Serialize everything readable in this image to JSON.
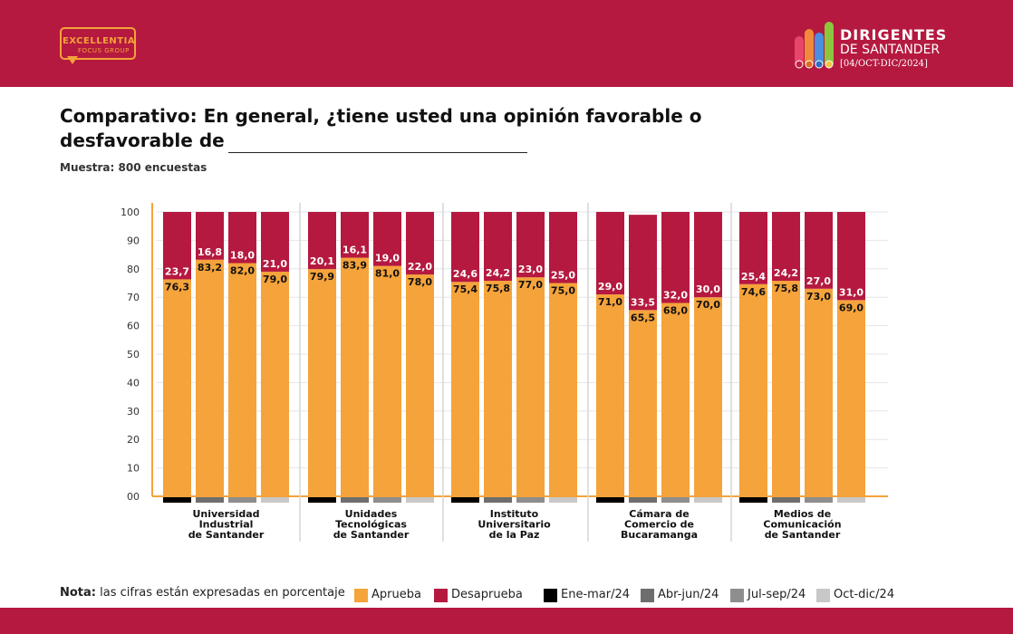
{
  "header": {
    "left_logo": {
      "name": "EXCELLENTIA",
      "sub": "FOCUS GROUP"
    },
    "brand": {
      "title": "DIRIGENTES",
      "subtitle": "DE SANTANDER",
      "date": "[04/OCT-DIC/2024]"
    }
  },
  "title_line1": "Comparativo: En general, ¿tiene usted una opinión favorable o",
  "title_line2": "desfavorable de",
  "sample": "Muestra: 800 encuestas",
  "note_label": "Nota:",
  "note_text": "las cifras están expresadas en porcentaje",
  "colors": {
    "aprueba": "#f5a33b",
    "desaprueba": "#b5193f",
    "ene_mar": "#000000",
    "abr_jun": "#6e6e6e",
    "jul_sep": "#8e8e8e",
    "oct_dic": "#c8c8c8",
    "axis": "#f5a33b",
    "header": "#b5193f"
  },
  "legend": [
    {
      "label": "Aprueba",
      "color": "#f5a33b"
    },
    {
      "label": "Desaprueba",
      "color": "#b5193f"
    },
    {
      "label": "Ene-mar/24",
      "color": "#000000"
    },
    {
      "label": "Abr-jun/24",
      "color": "#6e6e6e"
    },
    {
      "label": "Jul-sep/24",
      "color": "#8e8e8e"
    },
    {
      "label": "Oct-dic/24",
      "color": "#c8c8c8"
    }
  ],
  "chart_data": {
    "type": "bar",
    "stacked": true,
    "ylim": [
      0,
      100
    ],
    "yticks": [
      "00",
      "10",
      "20",
      "30",
      "40",
      "50",
      "60",
      "70",
      "80",
      "90",
      "100"
    ],
    "grid": true,
    "legend_position": "bottom",
    "periods": [
      "Ene-mar/24",
      "Abr-jun/24",
      "Jul-sep/24",
      "Oct-dic/24"
    ],
    "groups": [
      {
        "label": [
          "Universidad",
          "Industrial",
          "de Santander"
        ],
        "aprueba": [
          76.3,
          83.2,
          82.0,
          79.0
        ],
        "desaprueba": [
          23.7,
          16.8,
          18.0,
          21.0
        ],
        "aprueba_labels": [
          "76,3",
          "83,2",
          "82,0",
          "79,0"
        ],
        "desaprueba_labels": [
          "23,7",
          "16,8",
          "18,0",
          "21,0"
        ]
      },
      {
        "label": [
          "Unidades",
          "Tecnológicas",
          "de Santander"
        ],
        "aprueba": [
          79.9,
          83.9,
          81.0,
          78.0
        ],
        "desaprueba": [
          20.1,
          16.1,
          19.0,
          22.0
        ],
        "aprueba_labels": [
          "79,9",
          "83,9",
          "81,0",
          "78,0"
        ],
        "desaprueba_labels": [
          "20,1",
          "16,1",
          "19,0",
          "22,0"
        ]
      },
      {
        "label": [
          "Instituto",
          "Universitario",
          "de la Paz"
        ],
        "aprueba": [
          75.4,
          75.8,
          77.0,
          75.0
        ],
        "desaprueba": [
          24.6,
          24.2,
          23.0,
          25.0
        ],
        "aprueba_labels": [
          "75,4",
          "75,8",
          "77,0",
          "75,0"
        ],
        "desaprueba_labels": [
          "24,6",
          "24,2",
          "23,0",
          "25,0"
        ]
      },
      {
        "label": [
          "Cámara de",
          "Comercio de",
          "Bucaramanga"
        ],
        "aprueba": [
          71.0,
          65.5,
          68.0,
          70.0
        ],
        "desaprueba": [
          29.0,
          33.5,
          32.0,
          30.0
        ],
        "aprueba_labels": [
          "71,0",
          "65,5",
          "68,0",
          "70,0"
        ],
        "desaprueba_labels": [
          "29,0",
          "33,5",
          "32,0",
          "30,0"
        ]
      },
      {
        "label": [
          "Medios de",
          "Comunicación",
          "de Santander"
        ],
        "aprueba": [
          74.6,
          75.8,
          73.0,
          69.0
        ],
        "desaprueba": [
          25.4,
          24.2,
          27.0,
          31.0
        ],
        "aprueba_labels": [
          "74,6",
          "75,8",
          "73,0",
          "69,0"
        ],
        "desaprueba_labels": [
          "25,4",
          "24,2",
          "27,0",
          "31,0"
        ]
      }
    ]
  }
}
